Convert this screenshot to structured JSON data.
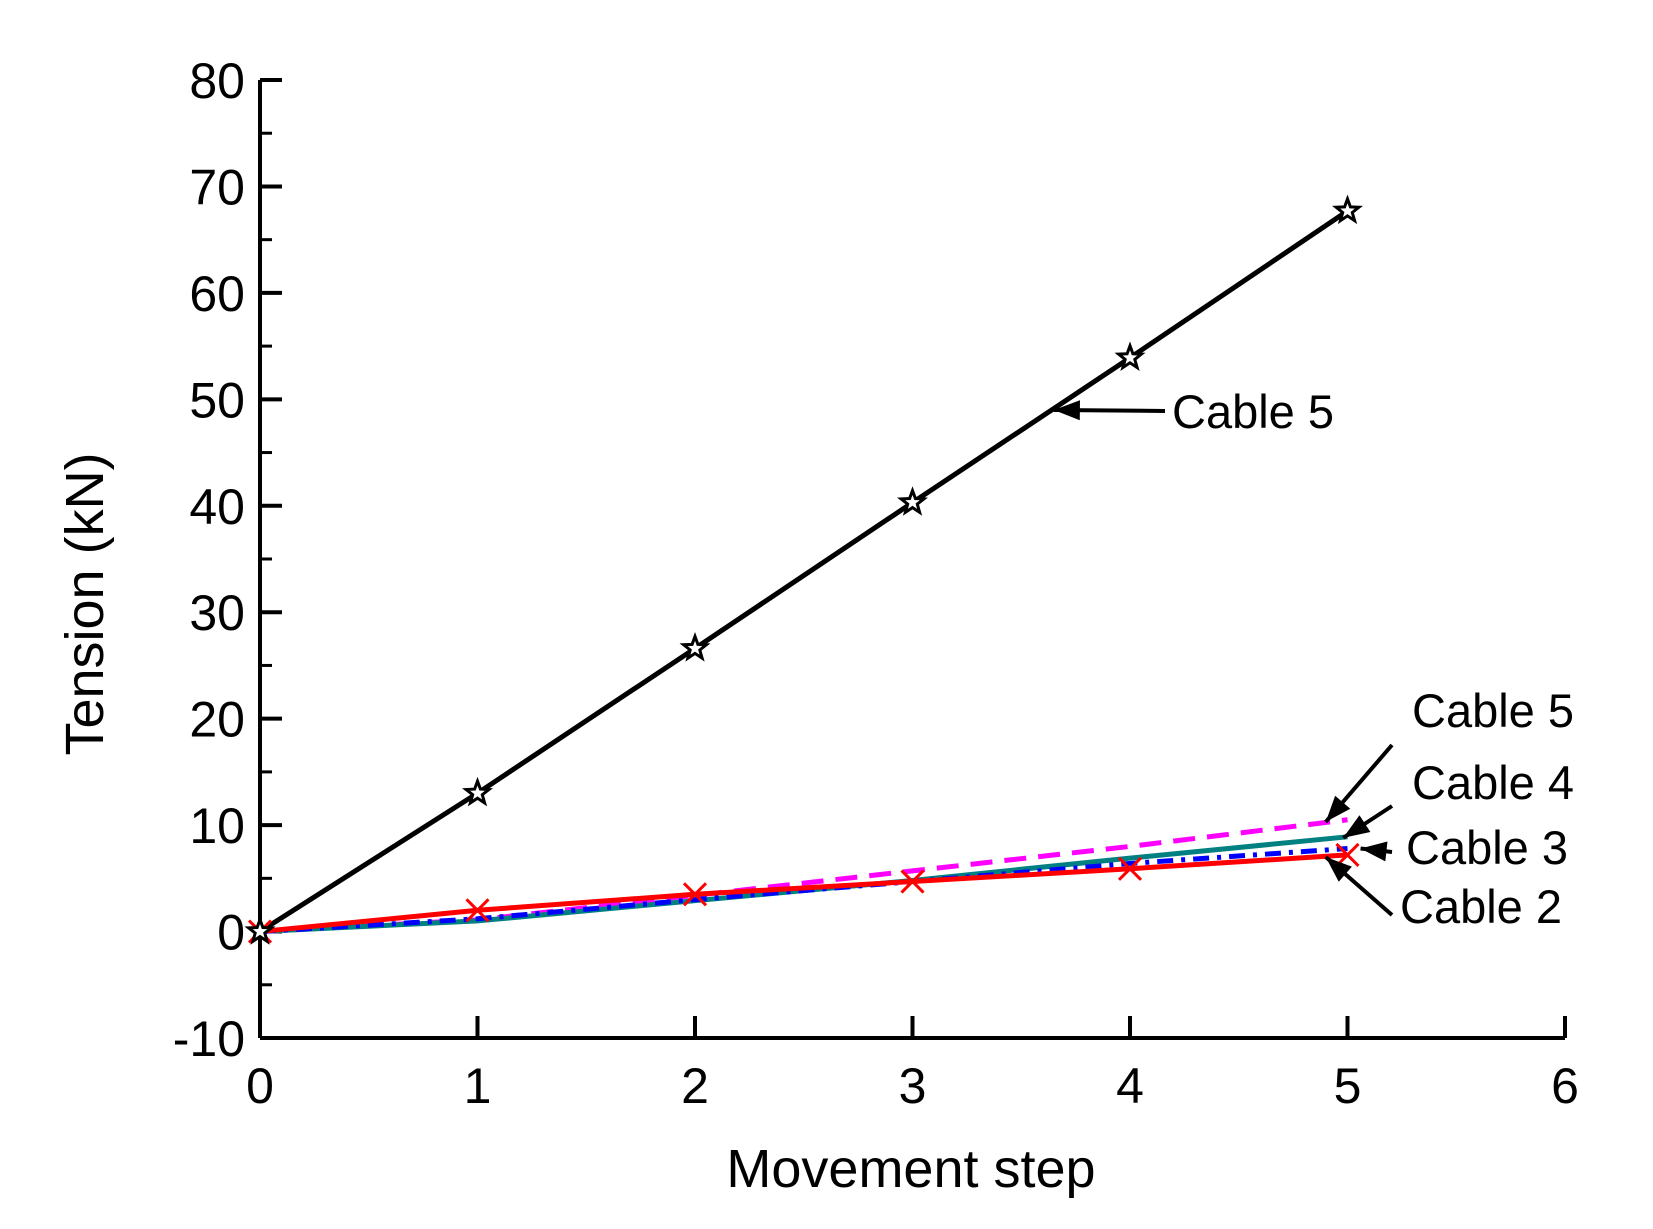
{
  "chart_data": {
    "type": "line",
    "xlabel": "Movement step",
    "ylabel": "Tension (kN)",
    "xlim": [
      0,
      6
    ],
    "ylim": [
      -10,
      80
    ],
    "x_ticks": [
      "0",
      "1",
      "2",
      "3",
      "4",
      "5",
      "6"
    ],
    "y_ticks": [
      "-10",
      "0",
      "10",
      "20",
      "30",
      "40",
      "50",
      "60",
      "70",
      "80"
    ],
    "grid": false,
    "series": [
      {
        "key": "s_black",
        "x": [
          0,
          1,
          2,
          3,
          4,
          5
        ],
        "values": [
          0,
          13,
          26.6,
          40.3,
          53.9,
          67.7
        ],
        "color": "#000000",
        "dash": "solid",
        "marker": "star"
      },
      {
        "key": "s_red",
        "x": [
          0,
          1,
          2,
          3,
          4,
          5
        ],
        "values": [
          0,
          2,
          3.5,
          4.7,
          5.9,
          7.2
        ],
        "color": "#ff0000",
        "dash": "solid",
        "marker": "x"
      },
      {
        "key": "s_blue",
        "x": [
          0,
          1,
          2,
          3,
          4,
          5
        ],
        "values": [
          0,
          1.2,
          3,
          4.7,
          6.4,
          7.8
        ],
        "color": "#0000ff",
        "dash": "dashdot",
        "marker": "none"
      },
      {
        "key": "s_teal",
        "x": [
          0,
          1,
          2,
          3,
          4,
          5
        ],
        "values": [
          0,
          1,
          2.9,
          4.8,
          6.9,
          8.9
        ],
        "color": "#008080",
        "dash": "solid",
        "marker": "none"
      },
      {
        "key": "s_magenta",
        "x": [
          0,
          1,
          2,
          3,
          4,
          5
        ],
        "values": [
          0,
          1.1,
          3.4,
          5.7,
          8.0,
          10.5
        ],
        "color": "#ff00ff",
        "dash": "dashed",
        "marker": "none"
      }
    ],
    "annotations": [
      {
        "text": "Cable 5",
        "target_x": 3.65,
        "target_y": 49,
        "align": "right"
      },
      {
        "text": "Cable 5",
        "target_x": 4.9,
        "target_y": 10.3,
        "align": "upper-right"
      },
      {
        "text": "Cable 4",
        "target_x": 4.98,
        "target_y": 8.8,
        "align": "upper-right"
      },
      {
        "text": "Cable 3",
        "target_x": 5.06,
        "target_y": 7.8,
        "align": "right"
      },
      {
        "text": "Cable 2",
        "target_x": 4.9,
        "target_y": 7.0,
        "align": "lower-right"
      }
    ]
  }
}
